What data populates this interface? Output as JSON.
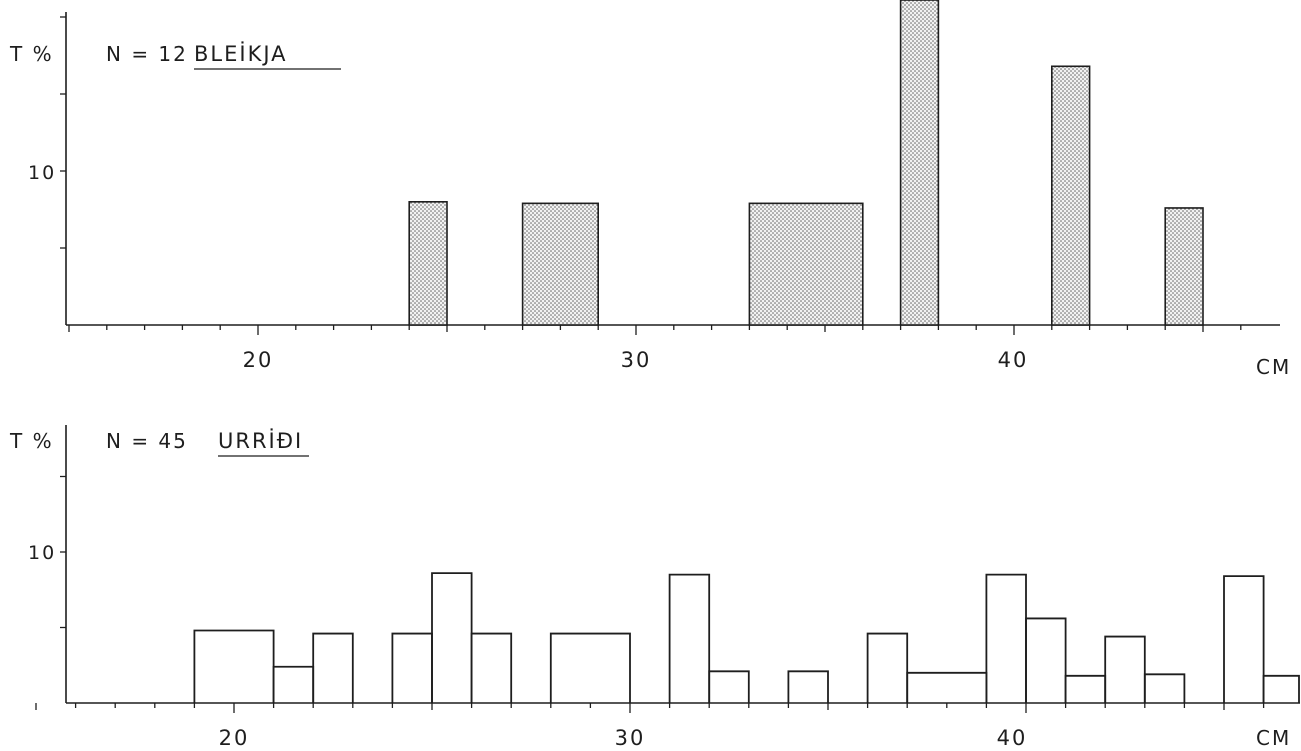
{
  "chart_data": [
    {
      "type": "bar",
      "title": "BLEİKJA",
      "n_label": "N = 12",
      "ylabel": "T %",
      "xlabel": "CM",
      "x_ticks": [
        "20",
        "30",
        "40"
      ],
      "y_ticks": [
        "10"
      ],
      "xlim": [
        15,
        46
      ],
      "ylim": [
        0,
        21
      ],
      "grid": false,
      "fill": "dotted",
      "bars": [
        {
          "x0": 24,
          "x1": 25,
          "value": 8.0
        },
        {
          "x0": 27,
          "x1": 29,
          "value": 7.9
        },
        {
          "x0": 33,
          "x1": 36,
          "value": 7.9
        },
        {
          "x0": 37,
          "x1": 38,
          "value": 21.5
        },
        {
          "x0": 41,
          "x1": 42,
          "value": 16.8
        },
        {
          "x0": 44,
          "x1": 45,
          "value": 7.6
        }
      ]
    },
    {
      "type": "bar",
      "title": "URRİÐI",
      "n_label": "N = 45",
      "ylabel": "T %",
      "xlabel": "CM",
      "x_ticks": [
        "20",
        "30",
        "40"
      ],
      "y_ticks": [
        "10"
      ],
      "xlim": [
        15,
        46
      ],
      "ylim": [
        0,
        18
      ],
      "grid": false,
      "fill": "none",
      "bars": [
        {
          "x0": 19,
          "x1": 21,
          "value": 4.8
        },
        {
          "x0": 21,
          "x1": 22,
          "value": 2.4
        },
        {
          "x0": 22,
          "x1": 23,
          "value": 4.6
        },
        {
          "x0": 24,
          "x1": 25,
          "value": 4.6
        },
        {
          "x0": 25,
          "x1": 26,
          "value": 8.6
        },
        {
          "x0": 26,
          "x1": 27,
          "value": 4.6
        },
        {
          "x0": 28,
          "x1": 30,
          "value": 4.6
        },
        {
          "x0": 31,
          "x1": 32,
          "value": 8.5
        },
        {
          "x0": 32,
          "x1": 33,
          "value": 2.1
        },
        {
          "x0": 34,
          "x1": 35,
          "value": 2.1
        },
        {
          "x0": 36,
          "x1": 37,
          "value": 4.6
        },
        {
          "x0": 37,
          "x1": 39,
          "value": 2.0
        },
        {
          "x0": 39,
          "x1": 40,
          "value": 8.5
        },
        {
          "x0": 40,
          "x1": 41,
          "value": 5.6
        },
        {
          "x0": 41,
          "x1": 42,
          "value": 1.8
        },
        {
          "x0": 42,
          "x1": 43,
          "value": 4.4
        },
        {
          "x0": 43,
          "x1": 44,
          "value": 1.9
        },
        {
          "x0": 45,
          "x1": 46,
          "value": 8.4
        },
        {
          "x0": 46,
          "x1": 48,
          "value": 1.8
        }
      ]
    }
  ]
}
